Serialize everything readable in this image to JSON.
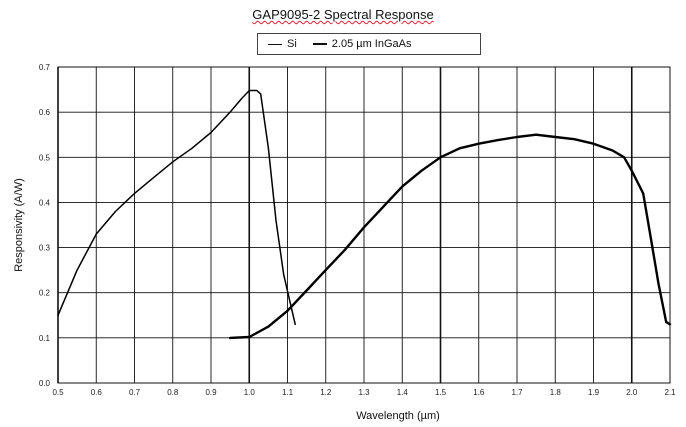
{
  "chart_data": {
    "type": "line",
    "title": "GAP9095-2 Spectral Response",
    "xlabel": "Wavelength (µm)",
    "ylabel": "Responsivity (A/W)",
    "xlim": [
      0.5,
      2.1
    ],
    "ylim": [
      0,
      0.7
    ],
    "x_ticks": [
      "0.5",
      "0.6",
      "0.7",
      "0.8",
      "0.9",
      "1.0",
      "1.1",
      "1.2",
      "1.3",
      "1.4",
      "1.5",
      "1.6",
      "1.7",
      "1.8",
      "1.9",
      "2.0",
      "2.1"
    ],
    "y_ticks": [
      "0.0",
      "0.1",
      "0.2",
      "0.3",
      "0.4",
      "0.5",
      "0.6",
      "0.7"
    ],
    "grid": true,
    "legend_position": "top-center",
    "series": [
      {
        "name": "Si",
        "color": "#000000",
        "stroke": "thin",
        "x": [
          0.5,
          0.55,
          0.6,
          0.65,
          0.7,
          0.75,
          0.8,
          0.85,
          0.9,
          0.95,
          0.98,
          1.0,
          1.02,
          1.03,
          1.05,
          1.07,
          1.09,
          1.12
        ],
        "y": [
          0.15,
          0.25,
          0.33,
          0.38,
          0.42,
          0.455,
          0.49,
          0.52,
          0.555,
          0.6,
          0.63,
          0.648,
          0.648,
          0.64,
          0.52,
          0.36,
          0.24,
          0.13
        ]
      },
      {
        "name": "2.05 µm InGaAs",
        "color": "#000000",
        "stroke": "thick",
        "x": [
          0.95,
          1.0,
          1.05,
          1.1,
          1.15,
          1.2,
          1.25,
          1.3,
          1.35,
          1.4,
          1.45,
          1.5,
          1.55,
          1.6,
          1.65,
          1.7,
          1.75,
          1.8,
          1.85,
          1.9,
          1.95,
          1.98,
          2.0,
          2.03,
          2.05,
          2.07,
          2.09,
          2.1
        ],
        "y": [
          0.1,
          0.102,
          0.125,
          0.16,
          0.205,
          0.25,
          0.295,
          0.345,
          0.39,
          0.435,
          0.47,
          0.5,
          0.52,
          0.53,
          0.538,
          0.545,
          0.55,
          0.545,
          0.54,
          0.53,
          0.515,
          0.5,
          0.47,
          0.42,
          0.32,
          0.22,
          0.135,
          0.13
        ]
      }
    ]
  }
}
